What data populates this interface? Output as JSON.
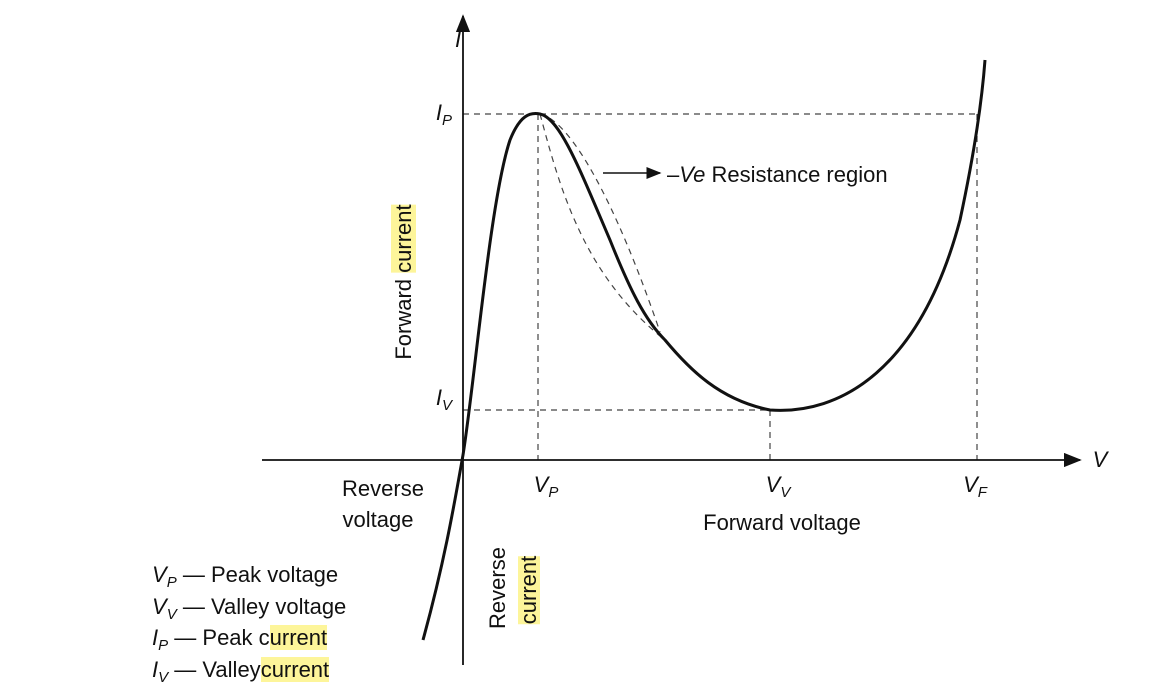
{
  "axes": {
    "y_label": "I",
    "x_label": "V"
  },
  "y_markers": [
    {
      "symbol": "I",
      "sub": "P"
    },
    {
      "symbol": "I",
      "sub": "V"
    }
  ],
  "x_markers": [
    {
      "symbol": "V",
      "sub": "P"
    },
    {
      "symbol": "V",
      "sub": "V"
    },
    {
      "symbol": "V",
      "sub": "F"
    }
  ],
  "annotation": {
    "prefix": "–",
    "italic": "Ve",
    "text": "Resistance region"
  },
  "forward_current": {
    "text": "Forward",
    "highlight": "current"
  },
  "reverse_voltage": [
    "Reverse",
    "voltage"
  ],
  "forward_voltage": "Forward voltage",
  "reverse_current": {
    "text": "Reverse",
    "highlight": "current"
  },
  "legend": [
    {
      "symbol": "V",
      "sub": "P",
      "dash": "—",
      "text": "Peak voltage",
      "highlight": null
    },
    {
      "symbol": "V",
      "sub": "V",
      "dash": "—",
      "text": "Valley voltage",
      "highlight": null
    },
    {
      "symbol": "I",
      "sub": "P",
      "dash": "—",
      "text": "Peak c",
      "highlight": "urrent"
    },
    {
      "symbol": "I",
      "sub": "V",
      "dash": "—",
      "text": "Valley",
      "highlight": "current"
    }
  ]
}
